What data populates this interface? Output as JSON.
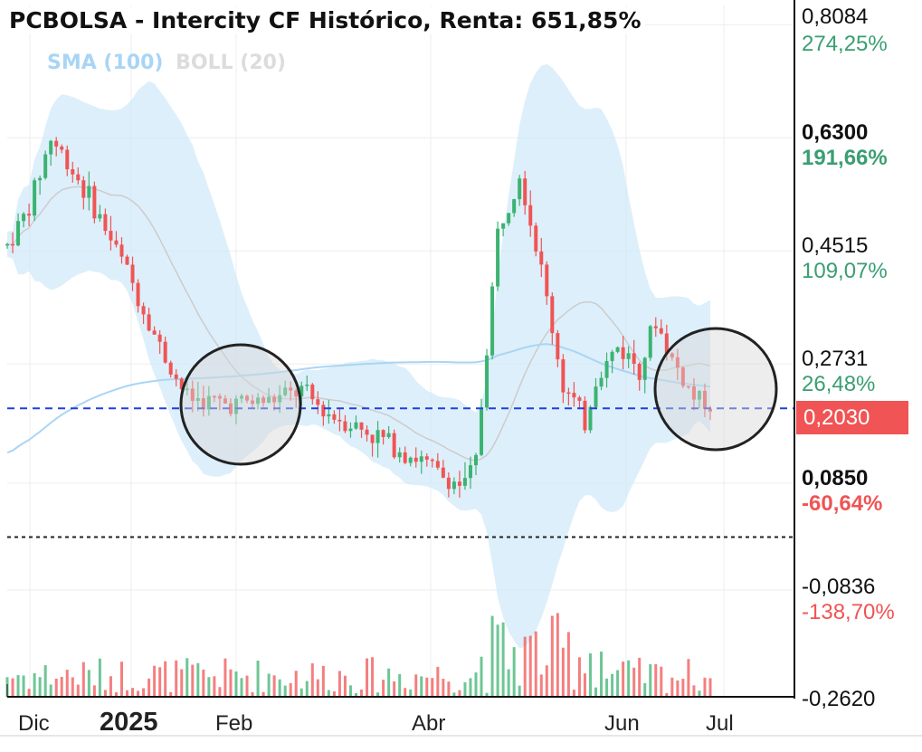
{
  "header": {
    "title": "PCBOLSA - Intercity CF Histórico, Renta: 651,85%"
  },
  "legend": {
    "sma": "SMA (100)",
    "boll": "BOLL (20)"
  },
  "current_price": {
    "label": "0,2030",
    "color": "#f05454"
  },
  "colors": {
    "up": "#3cb371",
    "down": "#f05454",
    "band": "#cfe8f8",
    "sma": "#a9d5f5",
    "boll_mid": "#cccccc",
    "price_line": "#1f3ee0"
  },
  "chart_data": {
    "type": "candlestick",
    "title": "PCBOLSA - Intercity CF Histórico, Renta: 651,85%",
    "y_axis": {
      "ticks": [
        {
          "price": "0,8084",
          "pct": "274,25%",
          "pct_color": "#3a9e72",
          "bold": false
        },
        {
          "price": "0,6300",
          "pct": "191,66%",
          "pct_color": "#3a9e72",
          "bold": true
        },
        {
          "price": "0,4515",
          "pct": "109,07%",
          "pct_color": "#3a9e72",
          "bold": false
        },
        {
          "price": "0,2731",
          "pct": "26,48%",
          "pct_color": "#3a9e72",
          "bold": false
        },
        {
          "price": "0,0850",
          "pct": "-60,64%",
          "pct_color": "#f05454",
          "bold": true
        },
        {
          "price": "-0,0836",
          "pct": "-138,70%",
          "pct_color": "#f05454",
          "bold": false
        },
        {
          "price": "-0,2620",
          "pct": "",
          "pct_color": "#f05454",
          "bold": false
        }
      ],
      "range": [
        -0.262,
        0.8084
      ]
    },
    "x_axis": {
      "labels": [
        {
          "text": "Dic",
          "bold": false
        },
        {
          "text": "2025",
          "bold": true
        },
        {
          "text": "Feb",
          "bold": false
        },
        {
          "text": "Abr",
          "bold": false
        },
        {
          "text": "Jun",
          "bold": false
        },
        {
          "text": "Jul",
          "bold": false
        }
      ]
    },
    "current_price": 0.203,
    "reference_level": 0.0,
    "grid": true
  }
}
